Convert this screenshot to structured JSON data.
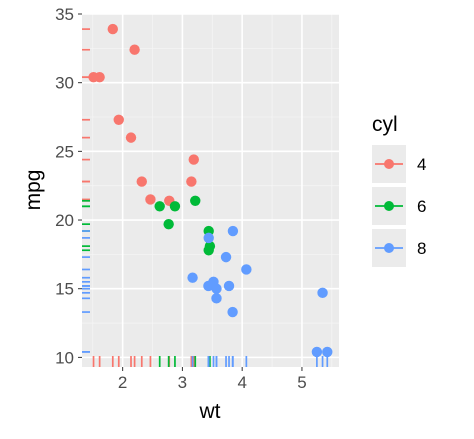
{
  "chart_data": {
    "type": "scatter",
    "xlabel": "wt",
    "ylabel": "mpg",
    "xlim": [
      1.32,
      5.62
    ],
    "ylim": [
      9.3,
      35.0
    ],
    "x_ticks": [
      2,
      3,
      4,
      5
    ],
    "y_ticks": [
      10,
      15,
      20,
      25,
      30,
      35
    ],
    "grid": true,
    "rug": true,
    "legend": {
      "title": "cyl",
      "position": "right",
      "entries": [
        {
          "label": "4",
          "color": "#F8766D"
        },
        {
          "label": "6",
          "color": "#00BA38"
        },
        {
          "label": "8",
          "color": "#619CFF"
        }
      ]
    },
    "series": [
      {
        "name": "4",
        "color": "#F8766D",
        "points": [
          {
            "x": 2.32,
            "y": 22.8
          },
          {
            "x": 3.19,
            "y": 24.4
          },
          {
            "x": 3.15,
            "y": 22.8
          },
          {
            "x": 2.2,
            "y": 32.4
          },
          {
            "x": 1.615,
            "y": 30.4
          },
          {
            "x": 1.835,
            "y": 33.9
          },
          {
            "x": 2.465,
            "y": 21.5
          },
          {
            "x": 1.935,
            "y": 27.3
          },
          {
            "x": 2.14,
            "y": 26.0
          },
          {
            "x": 1.513,
            "y": 30.4
          },
          {
            "x": 2.78,
            "y": 21.4
          }
        ]
      },
      {
        "name": "6",
        "color": "#00BA38",
        "points": [
          {
            "x": 2.62,
            "y": 21.0
          },
          {
            "x": 2.875,
            "y": 21.0
          },
          {
            "x": 3.215,
            "y": 21.4
          },
          {
            "x": 3.46,
            "y": 18.1
          },
          {
            "x": 3.44,
            "y": 19.2
          },
          {
            "x": 3.44,
            "y": 17.8
          },
          {
            "x": 2.77,
            "y": 19.7
          }
        ]
      },
      {
        "name": "8",
        "color": "#619CFF",
        "points": [
          {
            "x": 3.44,
            "y": 18.7
          },
          {
            "x": 3.57,
            "y": 14.3
          },
          {
            "x": 4.07,
            "y": 16.4
          },
          {
            "x": 3.73,
            "y": 17.3
          },
          {
            "x": 3.78,
            "y": 15.2
          },
          {
            "x": 5.25,
            "y": 10.4
          },
          {
            "x": 5.424,
            "y": 10.4
          },
          {
            "x": 5.345,
            "y": 14.7
          },
          {
            "x": 3.52,
            "y": 15.5
          },
          {
            "x": 3.435,
            "y": 15.2
          },
          {
            "x": 3.84,
            "y": 13.3
          },
          {
            "x": 3.845,
            "y": 19.2
          },
          {
            "x": 3.17,
            "y": 15.8
          },
          {
            "x": 3.57,
            "y": 15.0
          }
        ]
      }
    ]
  }
}
